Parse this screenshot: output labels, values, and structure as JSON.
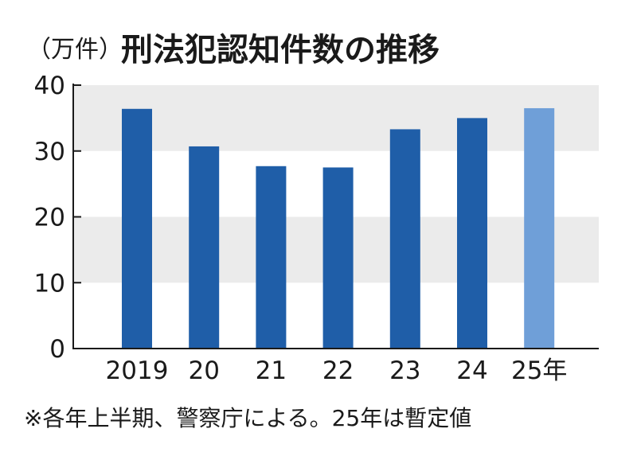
{
  "chart_data": {
    "type": "bar",
    "title": "刑法犯認知件数の推移",
    "unit_label": "（万件）",
    "categories": [
      "2019",
      "20",
      "21",
      "22",
      "23",
      "24",
      "25年"
    ],
    "values": [
      36.4,
      30.7,
      27.7,
      27.5,
      33.3,
      35.0,
      36.5
    ],
    "ylim": [
      0,
      40
    ],
    "yticks": [
      0,
      10,
      20,
      30,
      40
    ],
    "grid": "alternating horizontal bands",
    "bar_color": "#1f5ea8",
    "highlight_bar_color": "#6f9fd8",
    "highlight_index": 6,
    "band_color": "#ebebeb",
    "footnote": "※各年上半期、警察庁による。25年は暫定値"
  }
}
